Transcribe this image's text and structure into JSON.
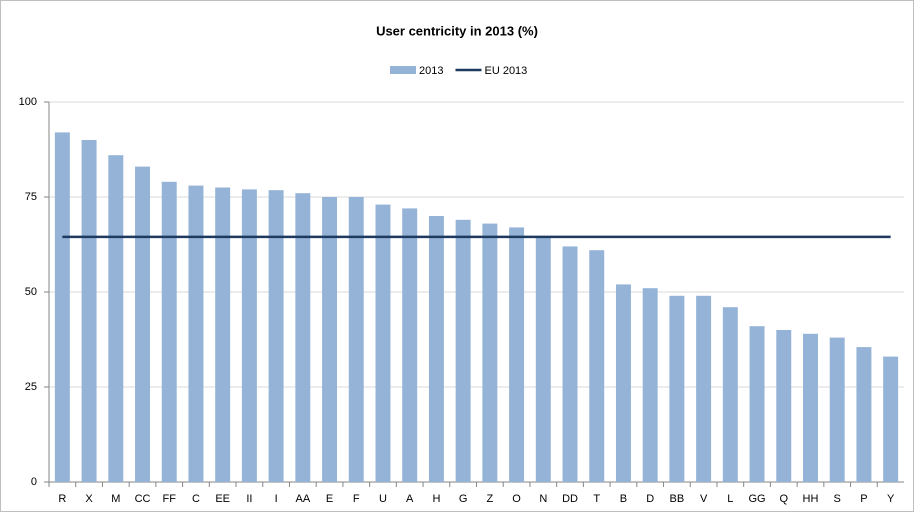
{
  "chart_data": {
    "type": "bar",
    "title": "User centricity in 2013 (%)",
    "categories": [
      "R",
      "X",
      "M",
      "CC",
      "FF",
      "C",
      "EE",
      "II",
      "I",
      "AA",
      "E",
      "F",
      "U",
      "A",
      "H",
      "G",
      "Z",
      "O",
      "N",
      "DD",
      "T",
      "B",
      "D",
      "BB",
      "V",
      "L",
      "GG",
      "Q",
      "HH",
      "S",
      "P",
      "Y"
    ],
    "series": [
      {
        "name": "2013",
        "type": "bar",
        "color": "#95b3d7",
        "values": [
          92,
          90,
          86,
          83,
          79,
          78,
          77.5,
          77,
          76.8,
          76,
          75,
          75,
          73,
          72,
          70,
          69,
          68,
          67,
          64.5,
          62,
          61,
          52,
          51,
          49,
          49,
          46,
          41,
          40,
          39,
          38,
          35.5,
          33
        ]
      },
      {
        "name": "EU 2013",
        "type": "line",
        "color": "#1f3a5f",
        "values": [
          64.5,
          64.5,
          64.5,
          64.5,
          64.5,
          64.5,
          64.5,
          64.5,
          64.5,
          64.5,
          64.5,
          64.5,
          64.5,
          64.5,
          64.5,
          64.5,
          64.5,
          64.5,
          64.5,
          64.5,
          64.5,
          64.5,
          64.5,
          64.5,
          64.5,
          64.5,
          64.5,
          64.5,
          64.5,
          64.5,
          64.5,
          64.5
        ]
      }
    ],
    "ylim": [
      0,
      100
    ],
    "yticks": [
      0,
      25,
      50,
      75,
      100
    ],
    "grid": true
  }
}
